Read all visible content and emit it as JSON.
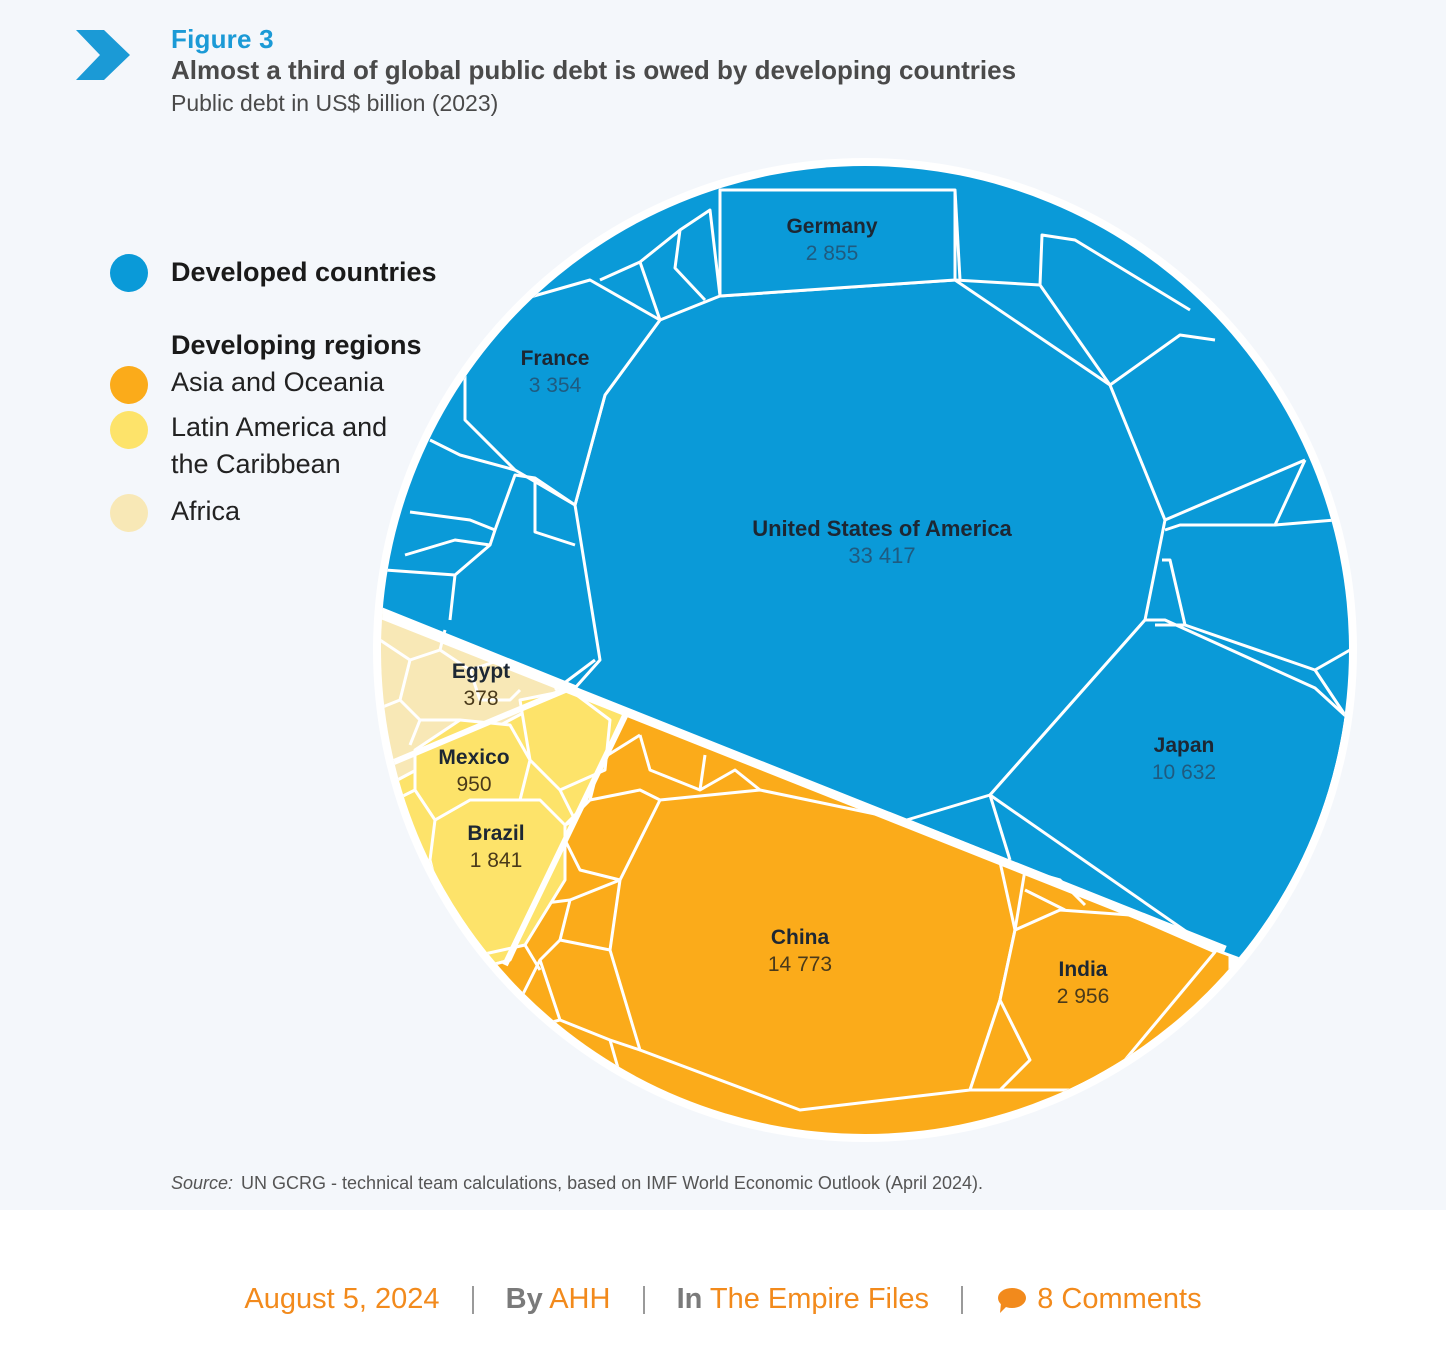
{
  "header": {
    "figure_label": "Figure 3",
    "title": "Almost a third of global public debt is owed by developing countries",
    "subtitle": "Public debt in US$ billion (2023)",
    "icon": "chevron-right-icon"
  },
  "legend": {
    "developed": "Developed countries",
    "developing_heading": "Developing regions",
    "asia": "Asia and Oceania",
    "latam_line1": "Latin America and",
    "latam_line2": "the Caribbean",
    "africa": "Africa"
  },
  "colors": {
    "developed": "#0a9ad8",
    "asia": "#fbab1a",
    "latam": "#fde36a",
    "africa": "#f8e8b6",
    "accent": "#1b9ad6",
    "meta_orange": "#f28a1c"
  },
  "chart_data": {
    "type": "voronoi-treemap",
    "title": "Almost a third of global public debt is owed by developing countries",
    "subtitle": "Public debt in US$ billion (2023)",
    "unit": "US$ billion",
    "groups": [
      "Developed countries",
      "Asia and Oceania",
      "Latin America and the Caribbean",
      "Africa"
    ],
    "labeled_cells": [
      {
        "name": "United States of America",
        "value": 33417,
        "value_label": "33 417",
        "group": "Developed countries"
      },
      {
        "name": "Japan",
        "value": 10632,
        "value_label": "10 632",
        "group": "Developed countries"
      },
      {
        "name": "France",
        "value": 3354,
        "value_label": "3 354",
        "group": "Developed countries"
      },
      {
        "name": "Germany",
        "value": 2855,
        "value_label": "2 855",
        "group": "Developed countries"
      },
      {
        "name": "China",
        "value": 14773,
        "value_label": "14 773",
        "group": "Asia and Oceania"
      },
      {
        "name": "India",
        "value": 2956,
        "value_label": "2 956",
        "group": "Asia and Oceania"
      },
      {
        "name": "Brazil",
        "value": 1841,
        "value_label": "1 841",
        "group": "Latin America and the Caribbean"
      },
      {
        "name": "Mexico",
        "value": 950,
        "value_label": "950",
        "group": "Latin America and the Caribbean"
      },
      {
        "name": "Egypt",
        "value": 378,
        "value_label": "378",
        "group": "Africa"
      }
    ]
  },
  "source": {
    "prefix": "Source:",
    "text": "UN GCRG - technical team calculations, based on IMF World Economic Outlook (April 2024)."
  },
  "meta": {
    "date": "August 5, 2024",
    "by_label": "By",
    "author": "AHH",
    "in_label": "In",
    "category": "The Empire Files",
    "comments": "8 Comments",
    "comment_icon": "comment-bubble-icon"
  }
}
